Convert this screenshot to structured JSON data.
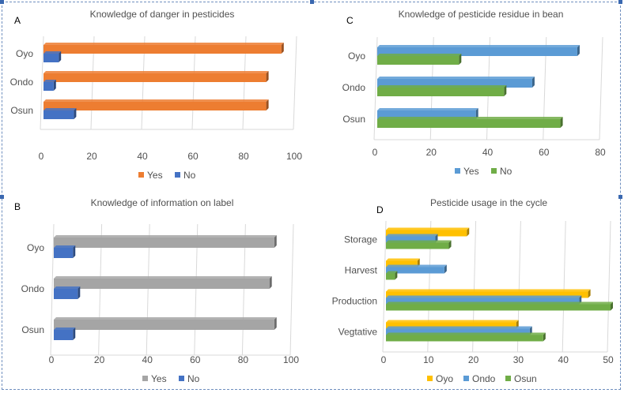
{
  "chart_data": [
    {
      "type": "bar",
      "orientation": "horizontal",
      "letter": "A",
      "title": "Knowledge of danger in pesticides",
      "categories": [
        "Oyo",
        "Ondo",
        "Osun"
      ],
      "series": [
        {
          "name": "Yes",
          "values": [
            94,
            88,
            88
          ],
          "color": "#ED7D31"
        },
        {
          "name": "No",
          "values": [
            6,
            4,
            12
          ],
          "color": "#4472C4"
        }
      ],
      "xlim": [
        0,
        100
      ],
      "xticks": [
        0,
        20,
        40,
        60,
        80,
        100
      ],
      "legend": "bottom"
    },
    {
      "type": "bar",
      "orientation": "horizontal",
      "letter": "C",
      "title": "Knowledge of pesticide residue in bean",
      "categories": [
        "Oyo",
        "Ondo",
        "Osun"
      ],
      "series": [
        {
          "name": "Yes",
          "values": [
            71,
            55,
            35
          ],
          "color": "#5B9BD5"
        },
        {
          "name": "No",
          "values": [
            29,
            45,
            65
          ],
          "color": "#70AD47"
        }
      ],
      "xlim": [
        0,
        80
      ],
      "xticks": [
        0,
        20,
        40,
        60,
        80
      ],
      "legend": "bottom"
    },
    {
      "type": "bar",
      "orientation": "horizontal",
      "letter": "B",
      "title": "Knowledge of information on label",
      "categories": [
        "Oyo",
        "Ondo",
        "Osun"
      ],
      "series": [
        {
          "name": "Yes",
          "values": [
            92,
            90,
            92
          ],
          "color": "#A5A5A5"
        },
        {
          "name": "No",
          "values": [
            8,
            10,
            8
          ],
          "color": "#4472C4"
        }
      ],
      "xlim": [
        0,
        100
      ],
      "xticks": [
        0,
        20,
        40,
        60,
        80,
        100
      ],
      "legend": "bottom"
    },
    {
      "type": "bar",
      "orientation": "horizontal",
      "letter": "D",
      "title": "Pesticide usage in the cycle",
      "categories": [
        "Storage",
        "Harvest",
        "Production",
        "Vegtative"
      ],
      "series": [
        {
          "name": "Oyo",
          "values": [
            18,
            7,
            45,
            29
          ],
          "color": "#FFC000"
        },
        {
          "name": "Ondo",
          "values": [
            11,
            13,
            43,
            32
          ],
          "color": "#5B9BD5"
        },
        {
          "name": "Osun",
          "values": [
            14,
            2,
            50,
            35
          ],
          "color": "#70AD47"
        }
      ],
      "xlim": [
        0,
        50
      ],
      "xticks": [
        0,
        10,
        20,
        30,
        40,
        50
      ],
      "legend": "bottom"
    }
  ]
}
